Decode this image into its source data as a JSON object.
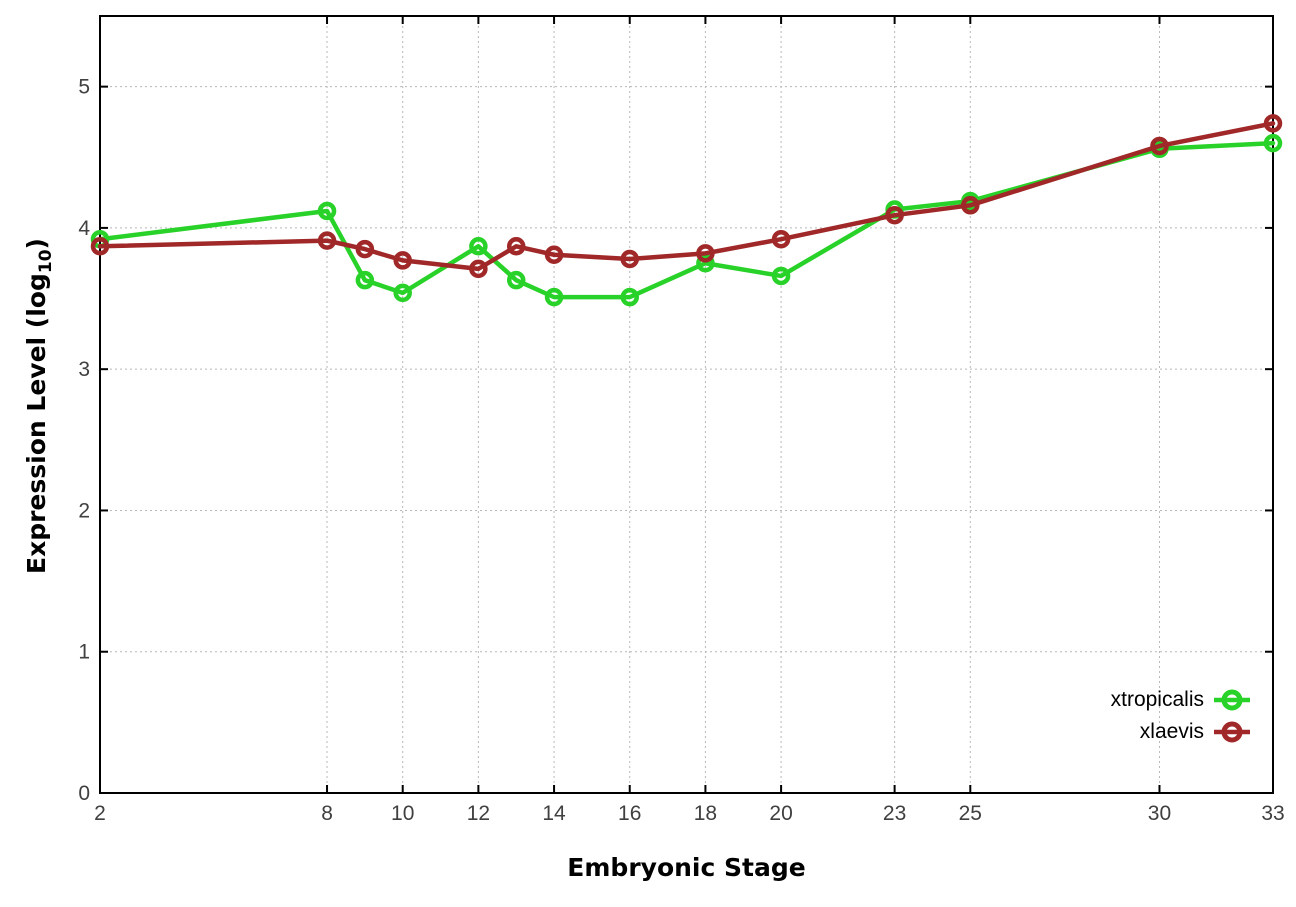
{
  "chart_data": {
    "type": "line",
    "title": "",
    "xlabel": "Embryonic Stage",
    "ylabel": "Expression Level (log10)",
    "ylabel_parts": {
      "pre": "Expression Level (log",
      "sub": "10",
      "post": ")"
    },
    "xlim": [
      2,
      33
    ],
    "ylim": [
      0,
      5.5
    ],
    "x_ticks": [
      2,
      8,
      10,
      12,
      14,
      16,
      18,
      20,
      23,
      25,
      30,
      33
    ],
    "y_ticks": [
      0,
      1,
      2,
      3,
      4,
      5
    ],
    "grid": true,
    "grid_style": "dotted",
    "legend_position": "inside-bottom-right",
    "marker": "open-circle",
    "x": [
      2,
      8,
      9,
      10,
      12,
      13,
      14,
      16,
      18,
      20,
      23,
      25,
      30,
      33
    ],
    "series": [
      {
        "name": "xtropicalis",
        "color": "#28d228",
        "values": [
          3.92,
          4.12,
          3.63,
          3.54,
          3.87,
          3.63,
          3.51,
          3.51,
          3.75,
          3.66,
          4.13,
          4.19,
          4.56,
          4.6
        ]
      },
      {
        "name": "xlaevis",
        "color": "#a02828",
        "values": [
          3.87,
          3.91,
          3.85,
          3.77,
          3.71,
          3.87,
          3.81,
          3.78,
          3.82,
          3.92,
          4.09,
          4.16,
          4.58,
          4.74
        ]
      }
    ],
    "colors": {
      "grid": "#b8b8b8",
      "border": "#000000",
      "tick_label": "#404040",
      "background": "#ffffff"
    }
  }
}
